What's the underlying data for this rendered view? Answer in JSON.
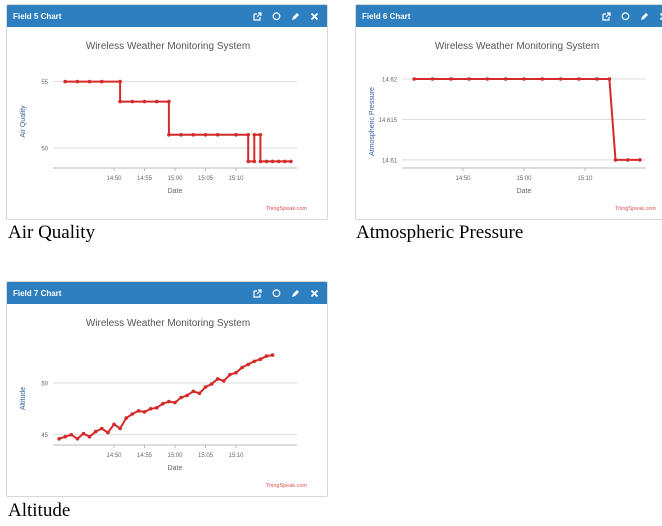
{
  "colors": {
    "header": "#2d7fc0",
    "line": "#d42a2a",
    "axis_text": "#666666",
    "grid": "#dddddd",
    "credit": "#e05050"
  },
  "widgets": [
    {
      "header_title": "Field 5 Chart",
      "caption": "Air Quality",
      "credit": "ThingSpeak.com",
      "chart_data": {
        "type": "line",
        "title": "Wireless Weather Monitoring System",
        "xlabel": "Date",
        "ylabel": "Air Quality",
        "x_range": [
          "14:40",
          "15:20"
        ],
        "x_ticks": [
          "14:50",
          "14:55",
          "15:00",
          "15:05",
          "15:10"
        ],
        "y_ticks": [
          50,
          55
        ],
        "ylim": [
          48.5,
          55.5
        ],
        "series": [
          {
            "points": [
              [
                "14:42",
                55
              ],
              [
                "14:44",
                55
              ],
              [
                "14:46",
                55
              ],
              [
                "14:48",
                55
              ],
              [
                "14:51",
                55
              ],
              [
                "14:51",
                53.5
              ],
              [
                "14:53",
                53.5
              ],
              [
                "14:55",
                53.5
              ],
              [
                "14:57",
                53.5
              ],
              [
                "14:59",
                53.5
              ],
              [
                "14:59",
                51
              ],
              [
                "15:01",
                51
              ],
              [
                "15:03",
                51
              ],
              [
                "15:05",
                51
              ],
              [
                "15:07",
                51
              ],
              [
                "15:10",
                51
              ],
              [
                "15:12",
                51
              ],
              [
                "15:12",
                49
              ],
              [
                "15:13",
                49
              ],
              [
                "15:13",
                51
              ],
              [
                "15:14",
                51
              ],
              [
                "15:14",
                49
              ],
              [
                "15:15",
                49
              ],
              [
                "15:16",
                49
              ],
              [
                "15:17",
                49
              ],
              [
                "15:18",
                49
              ],
              [
                "15:19",
                49
              ]
            ]
          }
        ]
      }
    },
    {
      "header_title": "Field 6 Chart",
      "caption": "Atmospheric Pressure",
      "credit": "ThingSpeak.com",
      "chart_data": {
        "type": "line",
        "title": "Wireless Weather Monitoring System",
        "xlabel": "Date",
        "ylabel": "Atmospheric Pressure",
        "x_range": [
          "14:40",
          "15:20"
        ],
        "x_ticks": [
          "14:50",
          "15:00",
          "15:10"
        ],
        "y_ticks": [
          14.61,
          14.615,
          14.62
        ],
        "ylim": [
          14.609,
          14.6205
        ],
        "series": [
          {
            "points": [
              [
                "14:42",
                14.62
              ],
              [
                "14:45",
                14.62
              ],
              [
                "14:48",
                14.62
              ],
              [
                "14:51",
                14.62
              ],
              [
                "14:54",
                14.62
              ],
              [
                "14:57",
                14.62
              ],
              [
                "15:00",
                14.62
              ],
              [
                "15:03",
                14.62
              ],
              [
                "15:06",
                14.62
              ],
              [
                "15:09",
                14.62
              ],
              [
                "15:12",
                14.62
              ],
              [
                "15:14",
                14.62
              ],
              [
                "15:15",
                14.61
              ],
              [
                "15:17",
                14.61
              ],
              [
                "15:19",
                14.61
              ]
            ]
          }
        ]
      }
    },
    {
      "header_title": "Field 7 Chart",
      "caption": "Altitude",
      "credit": "ThingSpeak.com",
      "chart_data": {
        "type": "line",
        "title": "Wireless Weather Monitoring System",
        "xlabel": "Date",
        "ylabel": "Altitude",
        "x_range": [
          "14:40",
          "15:20"
        ],
        "x_ticks": [
          "14:50",
          "14:55",
          "15:00",
          "15:05",
          "15:10"
        ],
        "y_ticks": [
          45,
          50
        ],
        "ylim": [
          44,
          53
        ],
        "series": [
          {
            "points": [
              [
                "14:41",
                44.6
              ],
              [
                "14:42",
                44.8
              ],
              [
                "14:43",
                45.0
              ],
              [
                "14:44",
                44.6
              ],
              [
                "14:45",
                45.1
              ],
              [
                "14:46",
                44.8
              ],
              [
                "14:47",
                45.3
              ],
              [
                "14:48",
                45.6
              ],
              [
                "14:49",
                45.2
              ],
              [
                "14:50",
                46.0
              ],
              [
                "14:51",
                45.6
              ],
              [
                "14:52",
                46.6
              ],
              [
                "14:53",
                47.0
              ],
              [
                "14:54",
                47.3
              ],
              [
                "14:55",
                47.2
              ],
              [
                "14:56",
                47.5
              ],
              [
                "14:57",
                47.6
              ],
              [
                "14:58",
                48.0
              ],
              [
                "14:59",
                48.2
              ],
              [
                "15:00",
                48.1
              ],
              [
                "15:01",
                48.6
              ],
              [
                "15:02",
                48.8
              ],
              [
                "15:03",
                49.2
              ],
              [
                "15:04",
                49.0
              ],
              [
                "15:05",
                49.6
              ],
              [
                "15:06",
                49.9
              ],
              [
                "15:07",
                50.4
              ],
              [
                "15:08",
                50.2
              ],
              [
                "15:09",
                50.8
              ],
              [
                "15:10",
                51.0
              ],
              [
                "15:11",
                51.5
              ],
              [
                "15:12",
                51.8
              ],
              [
                "15:13",
                52.1
              ],
              [
                "15:14",
                52.3
              ],
              [
                "15:15",
                52.6
              ],
              [
                "15:16",
                52.7
              ]
            ]
          }
        ]
      }
    }
  ]
}
